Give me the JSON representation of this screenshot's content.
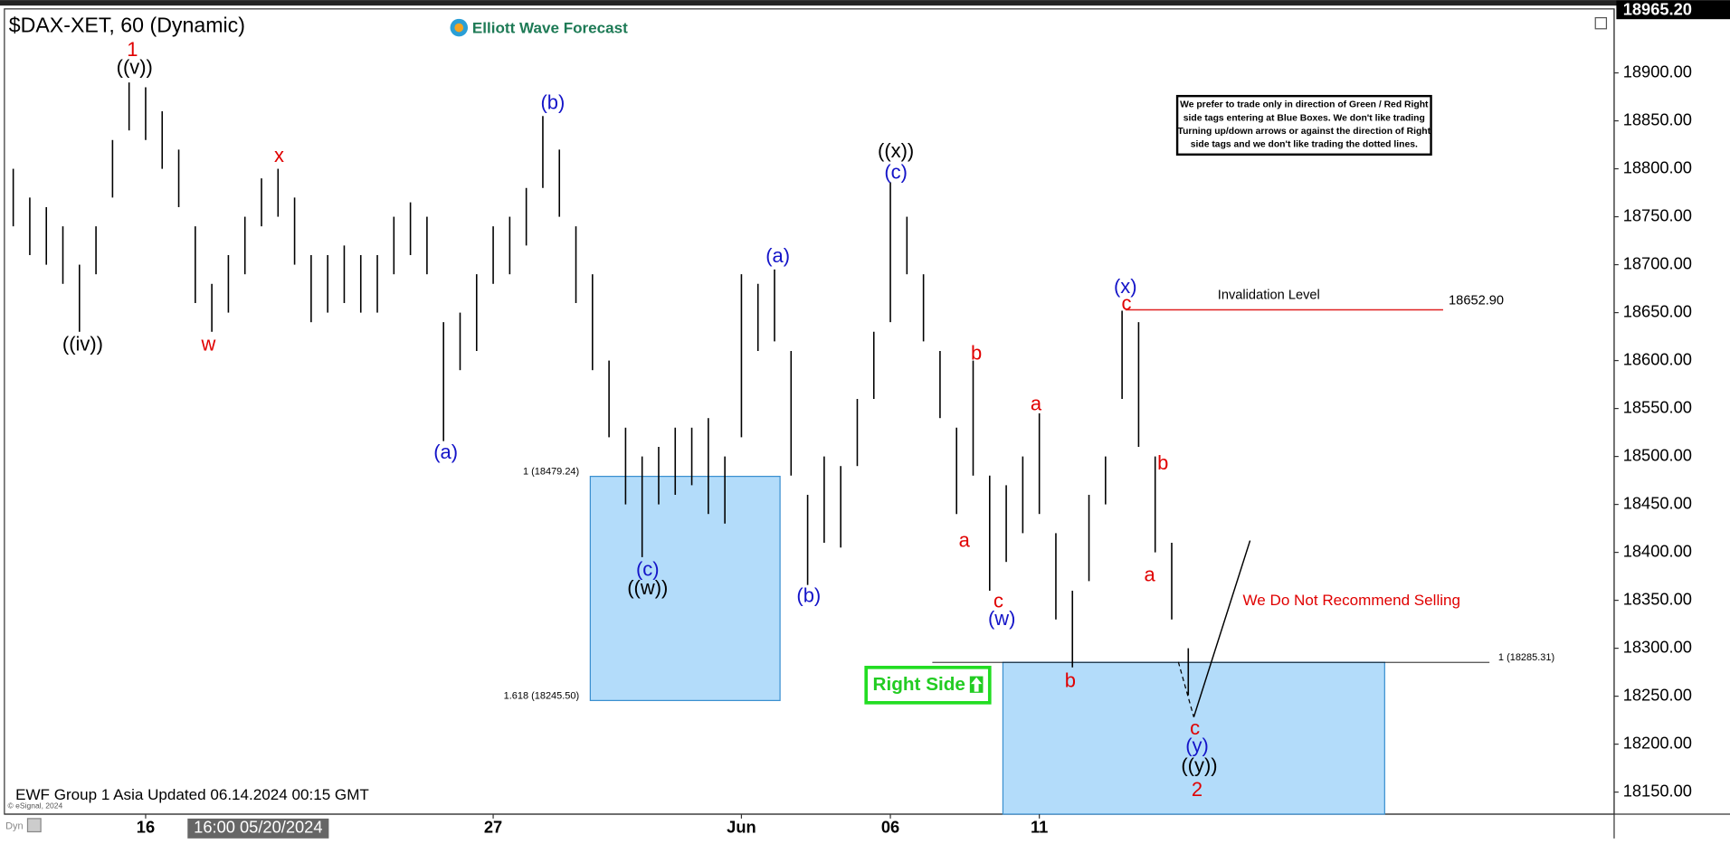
{
  "chart_data": {
    "type": "ohlc",
    "title": "$DAX-XET, 60 (Dynamic)",
    "brand": "Elliott Wave Forecast",
    "color": "#000000",
    "categories": [
      null,
      null,
      null,
      null,
      null,
      null,
      null,
      null,
      "16",
      null,
      null,
      null,
      null,
      null,
      null,
      null,
      null,
      null,
      null,
      null,
      null,
      null,
      null,
      null,
      null,
      null,
      null,
      null,
      null,
      "27",
      null,
      null,
      null,
      null,
      null,
      null,
      null,
      null,
      null,
      null,
      null,
      null,
      null,
      null,
      "Jun",
      null,
      null,
      null,
      null,
      null,
      null,
      null,
      null,
      "06",
      null,
      null,
      null,
      null,
      null,
      null,
      null,
      null,
      "11",
      null,
      null,
      null,
      null,
      null,
      null,
      null,
      null,
      null
    ],
    "high": [
      18800,
      18770,
      18760,
      18740,
      18700,
      18740,
      18830,
      18890,
      18885,
      18860,
      18820,
      18740,
      18680,
      18710,
      18750,
      18790,
      18800,
      18770,
      18710,
      18710,
      18720,
      18710,
      18710,
      18750,
      18765,
      18750,
      18640,
      18650,
      18690,
      18740,
      18750,
      18780,
      18855,
      18820,
      18740,
      18690,
      18600,
      18530,
      18500,
      18510,
      18530,
      18530,
      18540,
      18500,
      18690,
      18680,
      18695,
      18610,
      18460,
      18500,
      18490,
      18560,
      18630,
      18786,
      18750,
      18690,
      18610,
      18530,
      18600,
      18480,
      18470,
      18500,
      18545,
      18420,
      18360,
      18460,
      18500,
      18652,
      18640,
      18500,
      18410,
      18300
    ],
    "low": [
      18740,
      18710,
      18700,
      18680,
      18630,
      18690,
      18770,
      18840,
      18830,
      18800,
      18760,
      18660,
      18630,
      18650,
      18690,
      18740,
      18750,
      18700,
      18640,
      18650,
      18660,
      18650,
      18650,
      18690,
      18710,
      18690,
      18516,
      18590,
      18610,
      18680,
      18690,
      18720,
      18780,
      18750,
      18660,
      18590,
      18520,
      18450,
      18395,
      18450,
      18460,
      18470,
      18440,
      18430,
      18520,
      18610,
      18620,
      18480,
      18366,
      18410,
      18405,
      18490,
      18560,
      18640,
      18690,
      18620,
      18540,
      18440,
      18480,
      18360,
      18390,
      18420,
      18440,
      18330,
      18280,
      18370,
      18450,
      18560,
      18510,
      18400,
      18330,
      18251
    ],
    "ylim": [
      18127,
      18965
    ],
    "yticks": [
      {
        "value": 18150,
        "label": "18150.00"
      },
      {
        "value": 18200,
        "label": "18200.00"
      },
      {
        "value": 18250,
        "label": "18250.00"
      },
      {
        "value": 18300,
        "label": "18300.00"
      },
      {
        "value": 18350,
        "label": "18350.00"
      },
      {
        "value": 18400,
        "label": "18400.00"
      },
      {
        "value": 18450,
        "label": "18450.00"
      },
      {
        "value": 18500,
        "label": "18500.00"
      },
      {
        "value": 18550,
        "label": "18550.00"
      },
      {
        "value": 18600,
        "label": "18600.00"
      },
      {
        "value": 18650,
        "label": "18650.00"
      },
      {
        "value": 18700,
        "label": "18700.00"
      },
      {
        "value": 18750,
        "label": "18750.00"
      },
      {
        "value": 18800,
        "label": "18800.00"
      },
      {
        "value": 18850,
        "label": "18850.00"
      },
      {
        "value": 18900,
        "label": "18900.00"
      }
    ],
    "current_price": {
      "value": 18965.2,
      "label": "18965.20"
    },
    "cursor_label": "16:00 05/20/2024",
    "boxes": [
      {
        "top": {
          "value": 18479.24,
          "label": "1 (18479.24)"
        },
        "bottom": {
          "value": 18245.5,
          "label": "1.618 (18245.50)"
        }
      },
      {
        "top": {
          "value": 18285.31,
          "label": "1 (18285.31)"
        }
      }
    ],
    "invalidation": {
      "title": "Invalidation Level",
      "level": {
        "value": 18652.9,
        "label": "18652.90"
      },
      "color": "#e02020"
    },
    "notice": [
      "We prefer to trade only in direction of Green / Red Right",
      "side tags entering at Blue Boxes. We don't like trading",
      "Turning up/down arrows or against the direction of Right",
      "side tags and we don't like trading the dotted lines."
    ],
    "warning": "We Do Not Recommend Selling",
    "right_side": "Right Side",
    "footer": "EWF Group 1 Asia Updated 06.14.2024 00:15 GMT",
    "copyright": "© eSignal, 2024",
    "corner": "Dyn",
    "annotations": [
      {
        "text": "1",
        "color": "#e00000"
      },
      {
        "text": "((v))",
        "color": "#000000"
      },
      {
        "text": "((iv))",
        "color": "#000000"
      },
      {
        "text": "w",
        "color": "#e00000"
      },
      {
        "text": "x",
        "color": "#e00000"
      },
      {
        "text": "(a)",
        "color": "#1414c8"
      },
      {
        "text": "(b)",
        "color": "#1414c8"
      },
      {
        "text": "(c)",
        "color": "#1414c8"
      },
      {
        "text": "((w))",
        "color": "#000000"
      },
      {
        "text": "(a)",
        "color": "#1414c8"
      },
      {
        "text": "(b)",
        "color": "#1414c8"
      },
      {
        "text": "((x))",
        "color": "#000000"
      },
      {
        "text": "(c)",
        "color": "#1414c8"
      },
      {
        "text": "b",
        "color": "#e00000"
      },
      {
        "text": "a",
        "color": "#e00000"
      },
      {
        "text": "c",
        "color": "#e00000"
      },
      {
        "text": "(w)",
        "color": "#1414c8"
      },
      {
        "text": "a",
        "color": "#e00000"
      },
      {
        "text": "b",
        "color": "#e00000"
      },
      {
        "text": "(x)",
        "color": "#1414c8"
      },
      {
        "text": "c",
        "color": "#e00000"
      },
      {
        "text": "b",
        "color": "#e00000"
      },
      {
        "text": "a",
        "color": "#e00000"
      },
      {
        "text": "c",
        "color": "#e00000"
      },
      {
        "text": "(y)",
        "color": "#1414c8"
      },
      {
        "text": "((y))",
        "color": "#000000"
      },
      {
        "text": "2",
        "color": "#e00000"
      }
    ]
  }
}
